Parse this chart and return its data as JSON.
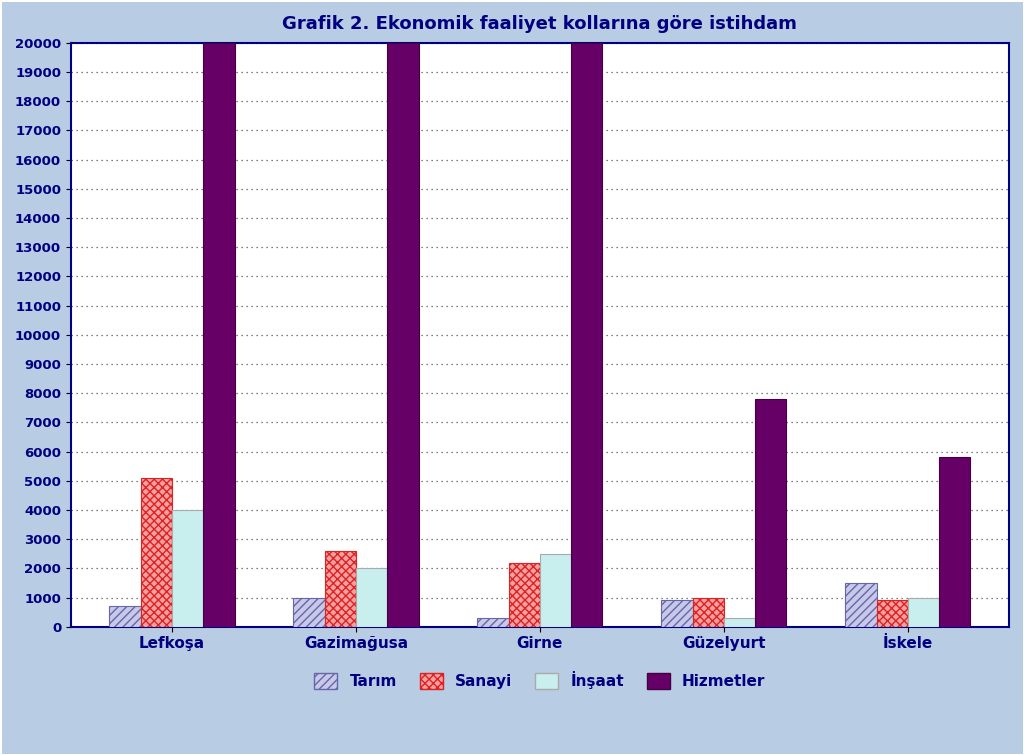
{
  "title": "Grafik 2. Ekonomik faaliyet kollarına göre istihdam",
  "categories": [
    "Lefkoşa",
    "Gazimağusa",
    "Girne",
    "Güzelyurt",
    "İskele"
  ],
  "series": {
    "Tarım": [
      700,
      1000,
      300,
      900,
      1500
    ],
    "Sanayi": [
      5100,
      2600,
      2200,
      1000,
      900
    ],
    "İnşaat": [
      4000,
      2000,
      2500,
      300,
      1000
    ],
    "Hizmetler": [
      20000,
      20000,
      20000,
      7800,
      5800
    ]
  },
  "colors": {
    "Tarım": {
      "facecolor": "#c8c8e8",
      "hatch": "////",
      "edgecolor": "#6666aa"
    },
    "Sanayi": {
      "facecolor": "#f5a0a0",
      "hatch": "xxxx",
      "edgecolor": "#dd2222"
    },
    "İnşaat": {
      "facecolor": "#c8eeee",
      "hatch": "",
      "edgecolor": "#aaaaaa"
    },
    "Hizmetler": {
      "facecolor": "#660066",
      "hatch": "",
      "edgecolor": "#440044"
    }
  },
  "ylim": [
    0,
    20000
  ],
  "yticks": [
    0,
    1000,
    2000,
    3000,
    4000,
    5000,
    6000,
    7000,
    8000,
    9000,
    10000,
    11000,
    12000,
    13000,
    14000,
    15000,
    16000,
    17000,
    18000,
    19000,
    20000
  ],
  "outer_bg": "#b8cce4",
  "plot_bg": "#ffffff",
  "title_color": "#000080",
  "title_fontsize": 13,
  "bar_width": 0.17,
  "legend_items": [
    "Tarım",
    "Sanayi",
    "İnşaat",
    "Hizmetler"
  ],
  "tick_color": "#000080",
  "grid_color": "#555555",
  "border_color": "#000080"
}
